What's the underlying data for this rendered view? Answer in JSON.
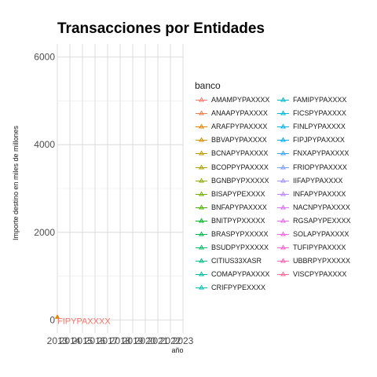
{
  "chart_data": {
    "type": "line",
    "title": "Transacciones por Entidades",
    "xlabel": "año",
    "ylabel": "Importe destino en miles de millones",
    "x_ticks": [
      "2013",
      "2014",
      "2015",
      "2016",
      "2017",
      "2018",
      "2019",
      "2020",
      "2021",
      "2022",
      "2023"
    ],
    "xlim": [
      2013,
      2023
    ],
    "y_ticks": [
      "0",
      "2000",
      "4000",
      "6000"
    ],
    "ylim": [
      -300,
      6300
    ],
    "grid": true,
    "legend": {
      "title": "banco",
      "position": "right",
      "columns": 2
    },
    "series": [
      {
        "name": "AMAMPYPAXXXX",
        "color": "#F8766D",
        "points": []
      },
      {
        "name": "ANAAPYPAXXXX",
        "color": "#F07E4E",
        "points": []
      },
      {
        "name": "ARAFPYPAXXXX",
        "color": "#E38900",
        "points": [
          {
            "x": 2013,
            "y": 60
          }
        ]
      },
      {
        "name": "BBVAPYPAXXXX",
        "color": "#D39200",
        "points": []
      },
      {
        "name": "BCNAPYPAXXXX",
        "color": "#C09B00",
        "points": []
      },
      {
        "name": "BCOPPYPAXXXX",
        "color": "#AAA300",
        "points": []
      },
      {
        "name": "BGNBPYPXXXXX",
        "color": "#93AA00",
        "points": []
      },
      {
        "name": "BISAPYPEXXXX",
        "color": "#75B000",
        "points": []
      },
      {
        "name": "BNFAPYPAXXXX",
        "color": "#4BB400",
        "points": []
      },
      {
        "name": "BNITPYPXXXXX",
        "color": "#00B928",
        "points": []
      },
      {
        "name": "BRASPYPXXXXX",
        "color": "#00BB4E",
        "points": []
      },
      {
        "name": "BSUDPYPXXXXX",
        "color": "#00BE6C",
        "points": []
      },
      {
        "name": "CITIUS33XASR",
        "color": "#00BF87",
        "points": []
      },
      {
        "name": "COMAPYPAXXXX",
        "color": "#00C0A0",
        "points": []
      },
      {
        "name": "CRIFPYPEXXXX",
        "color": "#00BFB6",
        "points": []
      },
      {
        "name": "FAMIPYPAXXXX",
        "color": "#00BDCB",
        "points": []
      },
      {
        "name": "FICSPYPAXXXX",
        "color": "#00BADD",
        "points": []
      },
      {
        "name": "FINLPYPAXXXX",
        "color": "#00B4EC",
        "points": []
      },
      {
        "name": "FIPJPYPAXXXX",
        "color": "#00AEF8",
        "points": []
      },
      {
        "name": "FNXAPYPAXXXX",
        "color": "#37A6FF",
        "points": []
      },
      {
        "name": "FRIOPYPAXXXX",
        "color": "#7C9EFF",
        "points": []
      },
      {
        "name": "IIFAPYPAXXXX",
        "color": "#A193FF",
        "points": []
      },
      {
        "name": "INFAPYPAXXXX",
        "color": "#C184FF",
        "points": []
      },
      {
        "name": "NACNPYPAXXXX",
        "color": "#DB72FB",
        "points": []
      },
      {
        "name": "RGSAPYPEXXXX",
        "color": "#EC69EF",
        "points": []
      },
      {
        "name": "SOLAPYPAXXXX",
        "color": "#F962DD",
        "points": []
      },
      {
        "name": "TUFIPYPAXXXX",
        "color": "#FF61C9",
        "points": []
      },
      {
        "name": "UBBRPYPXXXXX",
        "color": "#FF64B2",
        "points": []
      },
      {
        "name": "VISCPYPAXXXX",
        "color": "#FF6B98",
        "points": []
      }
    ],
    "annotations": [
      {
        "text": "FIPYPAXXXX",
        "x": 2013,
        "y": 0,
        "color": "#F8766D"
      }
    ]
  }
}
